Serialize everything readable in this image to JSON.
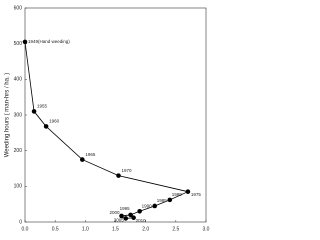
{
  "chart_data": {
    "type": "line",
    "y_label": "Weeding hours ( man-hrs / ha. )",
    "x": [
      0,
      0.15,
      0.35,
      0.95,
      1.55,
      2.7,
      2.4,
      2.15,
      1.9,
      1.75,
      1.6,
      1.67,
      1.8
    ],
    "values": [
      505,
      310,
      268,
      175,
      130,
      85,
      62,
      45,
      30,
      20,
      17,
      10,
      12
    ],
    "point_labels": [
      "1949(Hand weeding)",
      "1955",
      "1960",
      "1965",
      "1970",
      "1975",
      "1980",
      "1985",
      "1990",
      "1995",
      "2000",
      "2005",
      "2010"
    ],
    "color": "#000000",
    "xlim": [
      0,
      3.0
    ],
    "xticks": [
      {
        "value": 0,
        "label": "0.0"
      },
      {
        "value": 0.5,
        "label": "0.5"
      },
      {
        "value": 1,
        "label": "1.0"
      },
      {
        "value": 1.5,
        "label": "1.5"
      },
      {
        "value": 2,
        "label": "2.0"
      },
      {
        "value": 2.5,
        "label": "2.5"
      },
      {
        "value": 3,
        "label": "3.0"
      }
    ],
    "ylim": [
      0,
      600
    ],
    "yticks": [
      0,
      100,
      200,
      300,
      400,
      500,
      600
    ],
    "grid": false
  }
}
